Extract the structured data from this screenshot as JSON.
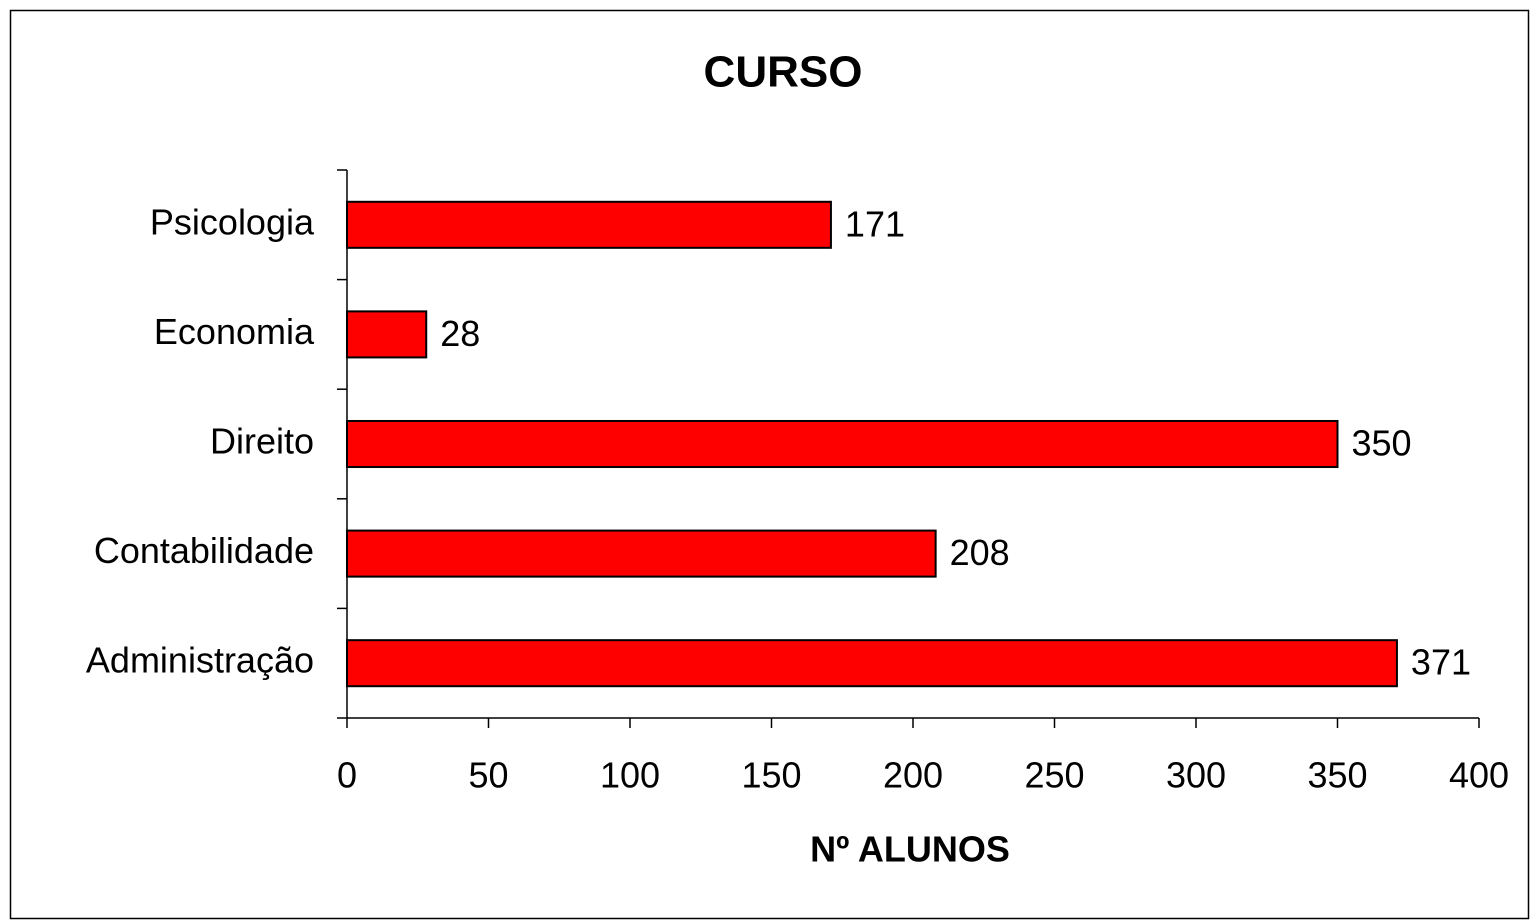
{
  "chart_data": {
    "type": "bar",
    "orientation": "horizontal",
    "title": "CURSO",
    "x_label": "Nº ALUNOS",
    "categories": [
      "Psicologia",
      "Economia",
      "Direito",
      "Contabilidade",
      "Administração"
    ],
    "values": [
      171,
      28,
      350,
      208,
      371
    ],
    "color": "#ff0000",
    "xlim": [
      0,
      400
    ],
    "xticks": [
      0,
      50,
      100,
      150,
      200,
      250,
      300,
      350,
      400
    ],
    "grid": false
  }
}
